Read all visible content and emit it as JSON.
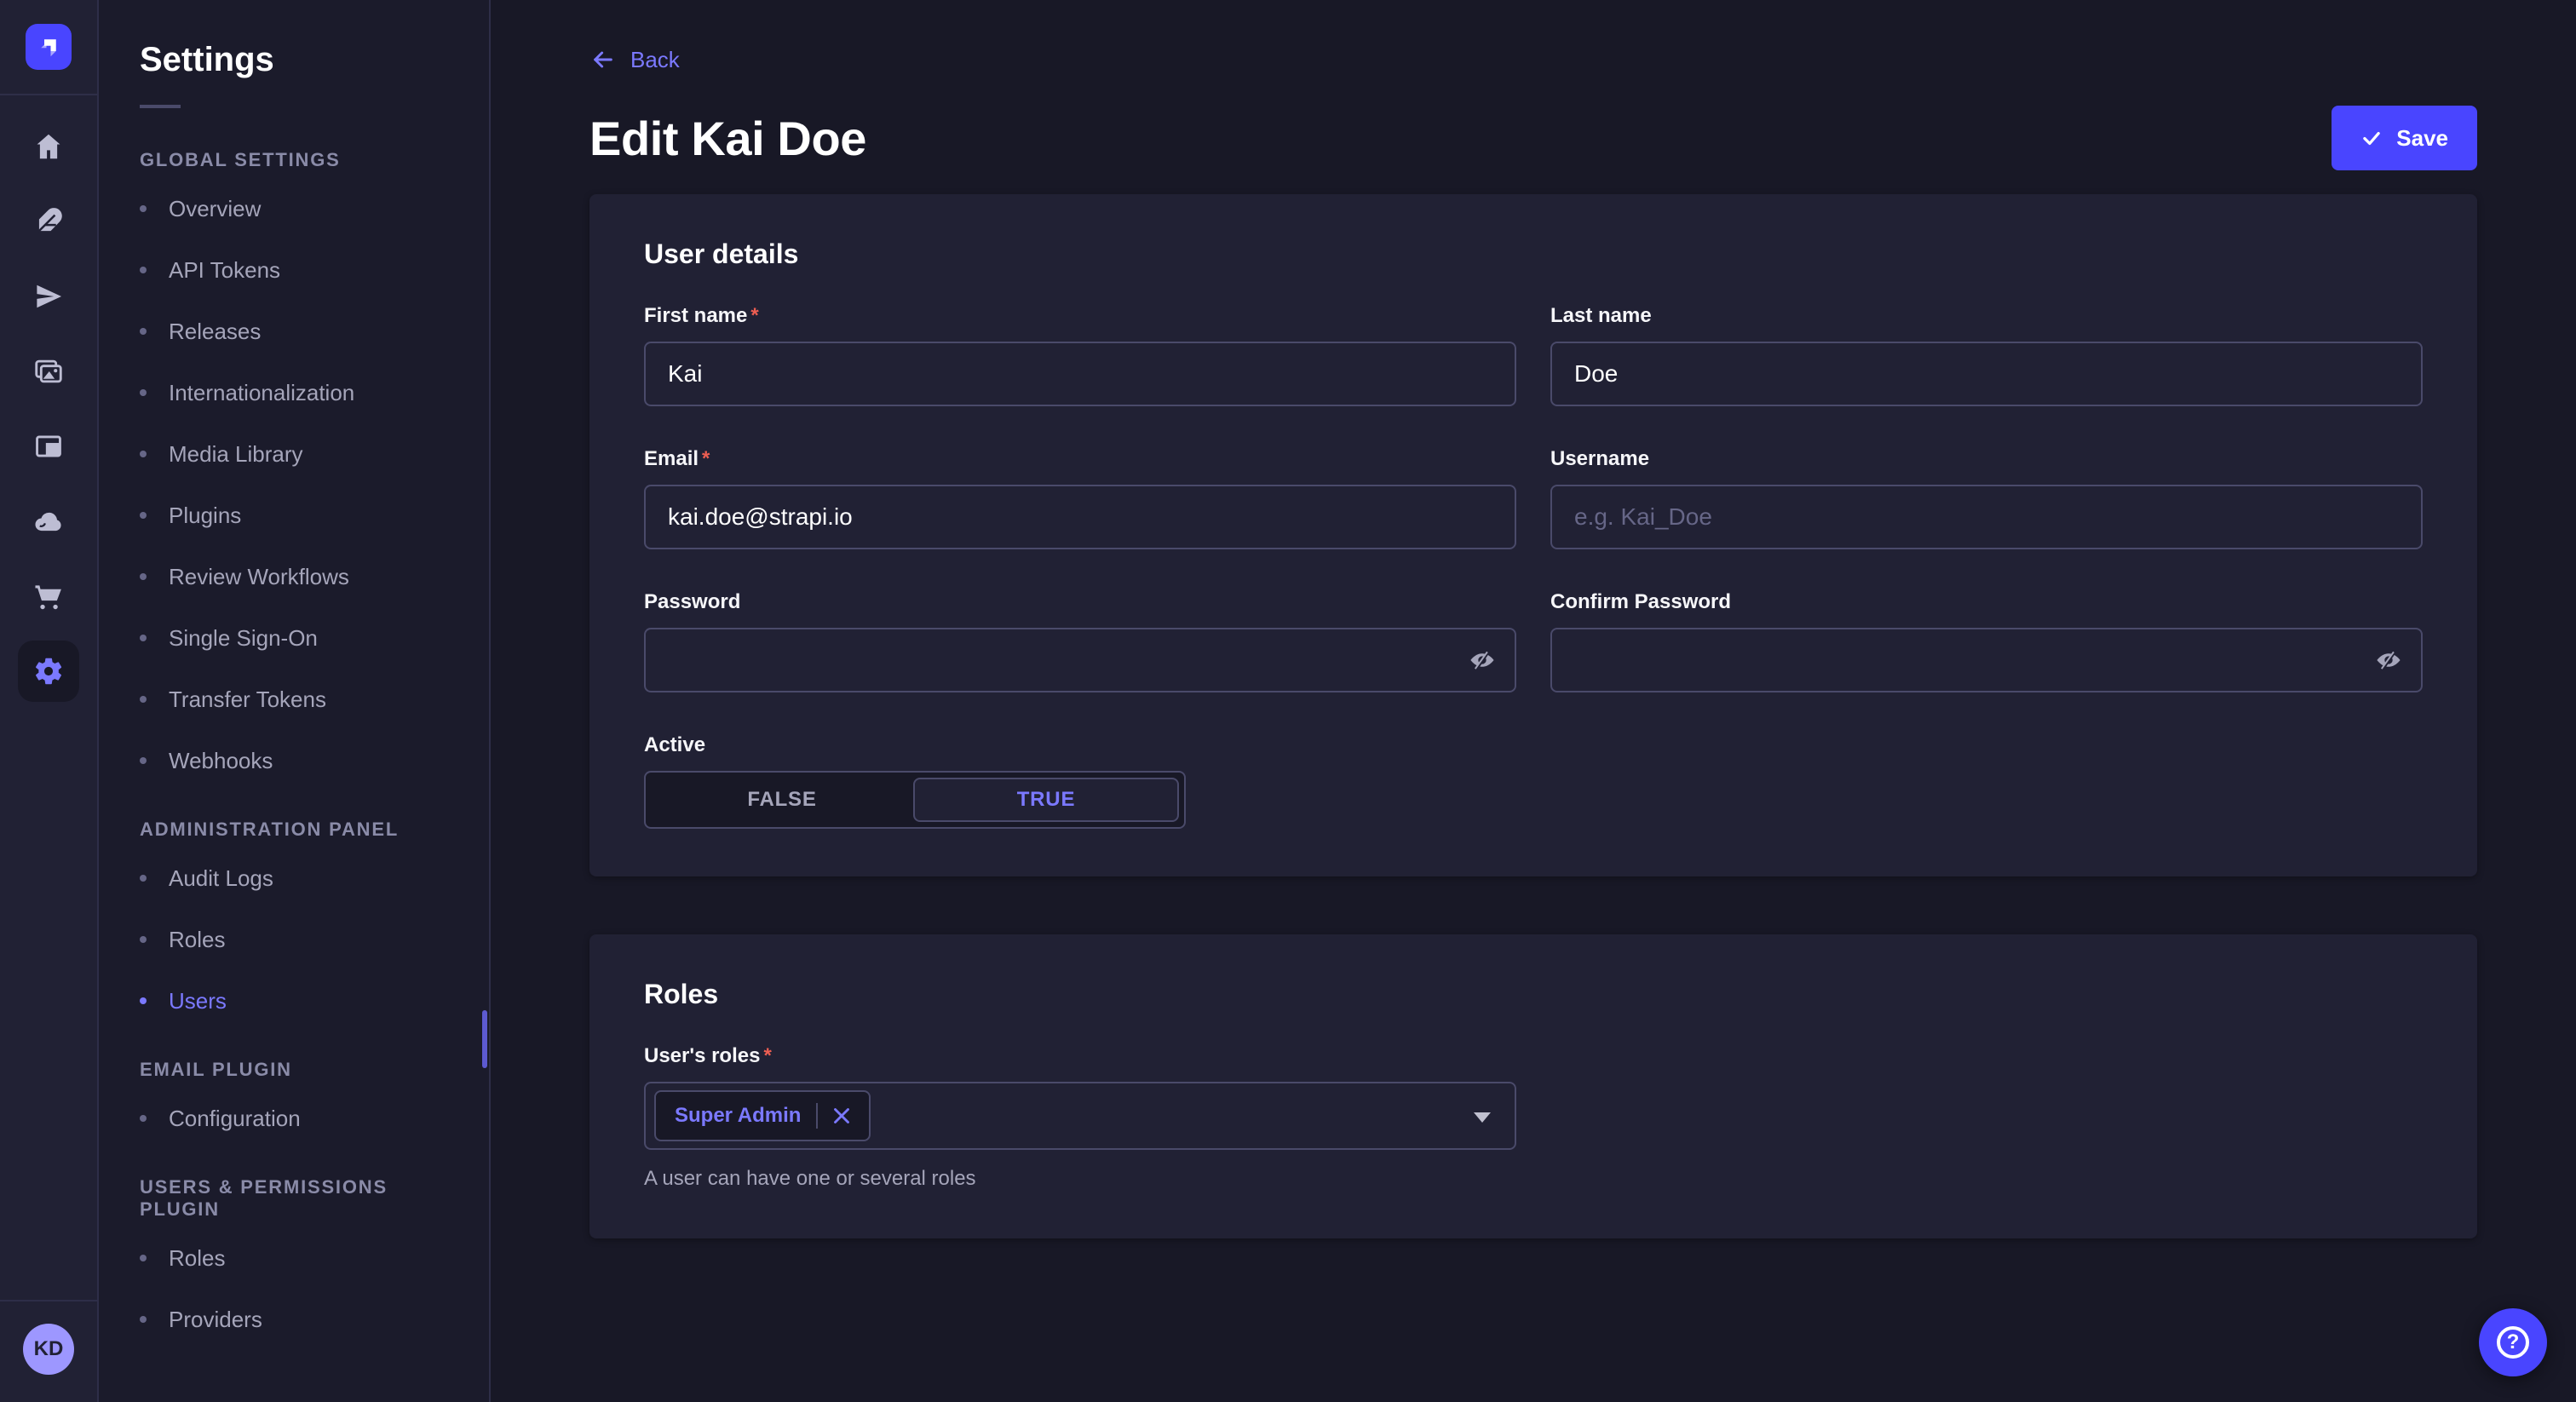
{
  "app": {
    "accent": "#4945ff",
    "accent_light": "#7b79ff",
    "required_marker": "*",
    "icon_rail": {
      "icons": [
        "strapi-logo",
        "home",
        "content-manager",
        "deploy",
        "media-library",
        "content-type-builder",
        "cloud",
        "marketplace",
        "settings"
      ],
      "active_icon": "settings"
    }
  },
  "settings_nav": {
    "title": "Settings",
    "sections": [
      {
        "label": "GLOBAL SETTINGS",
        "items": [
          {
            "label": "Overview"
          },
          {
            "label": "API Tokens"
          },
          {
            "label": "Releases"
          },
          {
            "label": "Internationalization"
          },
          {
            "label": "Media Library"
          },
          {
            "label": "Plugins"
          },
          {
            "label": "Review Workflows"
          },
          {
            "label": "Single Sign-On"
          },
          {
            "label": "Transfer Tokens"
          },
          {
            "label": "Webhooks"
          }
        ]
      },
      {
        "label": "ADMINISTRATION PANEL",
        "items": [
          {
            "label": "Audit Logs"
          },
          {
            "label": "Roles"
          },
          {
            "label": "Users",
            "active": true
          }
        ]
      },
      {
        "label": "EMAIL PLUGIN",
        "items": [
          {
            "label": "Configuration"
          }
        ]
      },
      {
        "label": "USERS & PERMISSIONS PLUGIN",
        "items": [
          {
            "label": "Roles"
          },
          {
            "label": "Providers"
          }
        ]
      }
    ]
  },
  "header": {
    "back_label": "Back",
    "title": "Edit Kai Doe",
    "save_label": "Save"
  },
  "user_details": {
    "heading": "User details",
    "fields": {
      "first_name": {
        "label": "First name",
        "required": true,
        "value": "Kai"
      },
      "last_name": {
        "label": "Last name",
        "value": "Doe"
      },
      "email": {
        "label": "Email",
        "required": true,
        "value": "kai.doe@strapi.io"
      },
      "username": {
        "label": "Username",
        "placeholder": "e.g. Kai_Doe",
        "value": ""
      },
      "password": {
        "label": "Password",
        "value": ""
      },
      "confirm_password": {
        "label": "Confirm Password",
        "value": ""
      },
      "active": {
        "label": "Active",
        "options": [
          "FALSE",
          "TRUE"
        ],
        "selected": "TRUE"
      }
    }
  },
  "roles_section": {
    "heading": "Roles",
    "label": "User's roles",
    "required": true,
    "selected_roles": [
      "Super Admin"
    ],
    "hint": "A user can have one or several roles"
  },
  "user_menu": {
    "initials": "KD"
  },
  "help": {
    "icon_glyph": "?"
  }
}
